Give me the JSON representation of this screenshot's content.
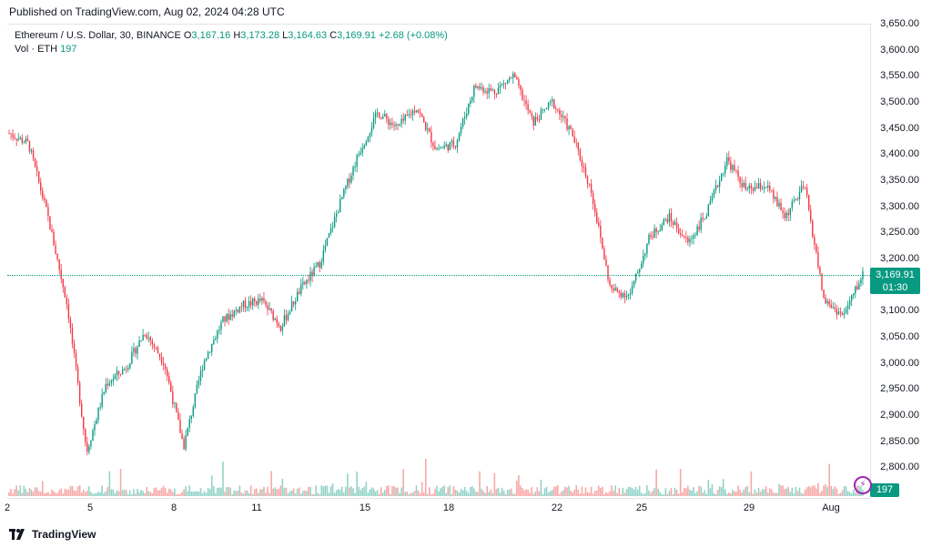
{
  "header": {
    "published": "Published on TradingView.com, Aug 02, 2024 04:28 UTC"
  },
  "legend": {
    "symbol": "Ethereum / U.S. Dollar, 30, BINANCE",
    "open_label": "O",
    "open": "3,167.16",
    "high_label": "H",
    "high": "3,173.28",
    "low_label": "L",
    "low": "3,164.63",
    "close_label": "C",
    "close": "3,169.91",
    "change": "+2.68 (+0.08%)",
    "vol_label": "Vol · ETH",
    "vol_value": "197"
  },
  "price_tag": {
    "price": "3,169.91",
    "countdown": "01:30"
  },
  "volume_tag": "197",
  "colors": {
    "up": "#089981",
    "down": "#f23645",
    "up_vol": "#94d3c8",
    "down_vol": "#f7a9a7"
  },
  "branding": {
    "logo_text": "TradingView"
  },
  "chart_data": {
    "type": "candlestick",
    "title": "Ethereum / U.S. Dollar, 30, BINANCE",
    "ylim": [
      2750,
      3650
    ],
    "y_ticks": [
      "3,650.00",
      "3,600.00",
      "3,550.00",
      "3,500.00",
      "3,450.00",
      "3,400.00",
      "3,350.00",
      "3,300.00",
      "3,250.00",
      "3,200.00",
      "3,150.00",
      "3,100.00",
      "3,050.00",
      "3,000.00",
      "2,950.00",
      "2,900.00",
      "2,850.00",
      "2,800.00"
    ],
    "x_ticks": [
      "2",
      "5",
      "8",
      "11",
      "15",
      "18",
      "22",
      "25",
      "29",
      "Aug"
    ],
    "price_path": [
      {
        "x": "2",
        "y": 3440
      },
      {
        "x": "3",
        "y": 3420
      },
      {
        "x": "4",
        "y": 3280
      },
      {
        "x": "4.5",
        "y": 3110
      },
      {
        "x": "5",
        "y": 2830
      },
      {
        "x": "5.5",
        "y": 2960
      },
      {
        "x": "6",
        "y": 2990
      },
      {
        "x": "7",
        "y": 3060
      },
      {
        "x": "7.5",
        "y": 3000
      },
      {
        "x": "8",
        "y": 2840
      },
      {
        "x": "8.5",
        "y": 3000
      },
      {
        "x": "9",
        "y": 3080
      },
      {
        "x": "10",
        "y": 3110
      },
      {
        "x": "11",
        "y": 3120
      },
      {
        "x": "12",
        "y": 3070
      },
      {
        "x": "13",
        "y": 3140
      },
      {
        "x": "14",
        "y": 3190
      },
      {
        "x": "14.5",
        "y": 3300
      },
      {
        "x": "15",
        "y": 3400
      },
      {
        "x": "15.5",
        "y": 3480
      },
      {
        "x": "16",
        "y": 3450
      },
      {
        "x": "17",
        "y": 3490
      },
      {
        "x": "18",
        "y": 3410
      },
      {
        "x": "19",
        "y": 3420
      },
      {
        "x": "20",
        "y": 3530
      },
      {
        "x": "21",
        "y": 3520
      },
      {
        "x": "22",
        "y": 3550
      },
      {
        "x": "22.5",
        "y": 3460
      },
      {
        "x": "23",
        "y": 3500
      },
      {
        "x": "24",
        "y": 3440
      },
      {
        "x": "24.5",
        "y": 3330
      },
      {
        "x": "25",
        "y": 3140
      },
      {
        "x": "25.5",
        "y": 3130
      },
      {
        "x": "26",
        "y": 3240
      },
      {
        "x": "27",
        "y": 3280
      },
      {
        "x": "28",
        "y": 3230
      },
      {
        "x": "28.5",
        "y": 3290
      },
      {
        "x": "29",
        "y": 3390
      },
      {
        "x": "29.5",
        "y": 3330
      },
      {
        "x": "30",
        "y": 3340
      },
      {
        "x": "31",
        "y": 3280
      },
      {
        "x": "31.5",
        "y": 3340
      },
      {
        "x": "Aug",
        "y": 3120
      },
      {
        "x": "Aug 1.5",
        "y": 3090
      },
      {
        "x": "Aug 2",
        "y": 3169.91
      }
    ]
  }
}
